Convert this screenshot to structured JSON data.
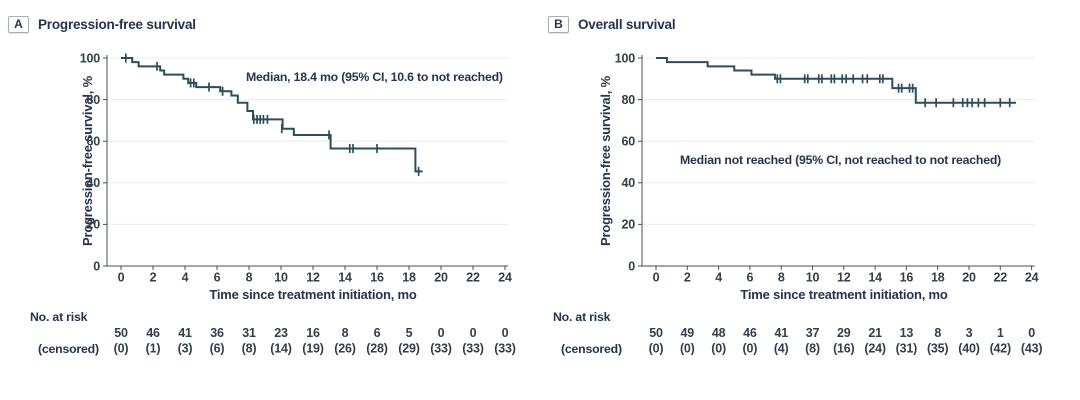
{
  "colors": {
    "curve": "#2d4d5f",
    "grid": "#e8ebec",
    "axis": "#4a4f54",
    "heading_text": "#24344c",
    "tick_text": "#333e4a"
  },
  "chart_data": [
    {
      "type": "line",
      "subtype": "kaplan-meier-step",
      "panel_label": "A",
      "panel_title": "Progression-free survival",
      "annotation": "Median, 18.4 mo (95% CI, 10.6 to not reached)",
      "xlabel": "Time since treatment initiation, mo",
      "ylabel": "Progression-free survival, %",
      "xlim": [
        0,
        24
      ],
      "ylim": [
        0,
        100
      ],
      "x_ticks": [
        0,
        2,
        4,
        6,
        8,
        10,
        12,
        14,
        16,
        18,
        20,
        22,
        24
      ],
      "y_ticks": [
        0,
        20,
        40,
        60,
        80,
        100
      ],
      "grid": "horizontal",
      "steps": [
        [
          0,
          100
        ],
        [
          0.7,
          98
        ],
        [
          1.1,
          96
        ],
        [
          2.45,
          94
        ],
        [
          2.7,
          92
        ],
        [
          3.9,
          90
        ],
        [
          4.2,
          88
        ],
        [
          4.7,
          86
        ],
        [
          6.2,
          84
        ],
        [
          6.9,
          82
        ],
        [
          7.3,
          78.5
        ],
        [
          7.9,
          74.5
        ],
        [
          8.25,
          70.5
        ],
        [
          10.1,
          66
        ],
        [
          10.8,
          63
        ],
        [
          13.1,
          56.5
        ],
        [
          18.4,
          45.5
        ]
      ],
      "end_time": 18.85,
      "censor_marks": [
        [
          0.3,
          100
        ],
        [
          2.25,
          96
        ],
        [
          4.35,
          88
        ],
        [
          4.55,
          88
        ],
        [
          5.5,
          86
        ],
        [
          6.35,
          84
        ],
        [
          8.3,
          70.5
        ],
        [
          8.5,
          70.5
        ],
        [
          8.7,
          70.5
        ],
        [
          8.9,
          70.5
        ],
        [
          9.15,
          70.5
        ],
        [
          10.05,
          66
        ],
        [
          13.0,
          63
        ],
        [
          14.3,
          56.5
        ],
        [
          14.5,
          56.5
        ],
        [
          16.0,
          56.5
        ],
        [
          18.6,
          45.5
        ]
      ],
      "risk_table": {
        "label": "No. at risk",
        "label2": "(censored)",
        "at_risk": [
          50,
          46,
          41,
          36,
          31,
          23,
          16,
          8,
          6,
          5,
          0,
          0,
          0
        ],
        "censored": [
          "(0)",
          "(1)",
          "(3)",
          "(6)",
          "(8)",
          "(14)",
          "(19)",
          "(26)",
          "(28)",
          "(29)",
          "(33)",
          "(33)",
          "(33)"
        ]
      }
    },
    {
      "type": "line",
      "subtype": "kaplan-meier-step",
      "panel_label": "B",
      "panel_title": "Overall survival",
      "annotation": "Median not reached (95% CI, not reached to not reached)",
      "xlabel": "Time since treatment initiation, mo",
      "ylabel": "Progression-free survival, %",
      "xlim": [
        0,
        24
      ],
      "ylim": [
        0,
        100
      ],
      "x_ticks": [
        0,
        2,
        4,
        6,
        8,
        10,
        12,
        14,
        16,
        18,
        20,
        22,
        24
      ],
      "y_ticks": [
        0,
        20,
        40,
        60,
        80,
        100
      ],
      "grid": "horizontal",
      "steps": [
        [
          0,
          100
        ],
        [
          0.7,
          98
        ],
        [
          3.3,
          96
        ],
        [
          5.0,
          94
        ],
        [
          6.1,
          92
        ],
        [
          7.6,
          90
        ],
        [
          15.1,
          85.5
        ],
        [
          16.6,
          78.5
        ]
      ],
      "end_time": 23.0,
      "censor_marks": [
        [
          7.75,
          90
        ],
        [
          7.95,
          90
        ],
        [
          9.5,
          90
        ],
        [
          9.7,
          90
        ],
        [
          10.4,
          90
        ],
        [
          10.6,
          90
        ],
        [
          11.2,
          90
        ],
        [
          11.4,
          90
        ],
        [
          11.9,
          90
        ],
        [
          12.15,
          90
        ],
        [
          12.6,
          90
        ],
        [
          13.2,
          90
        ],
        [
          13.5,
          90
        ],
        [
          14.3,
          90
        ],
        [
          14.5,
          90
        ],
        [
          15.5,
          85.5
        ],
        [
          15.7,
          85.5
        ],
        [
          16.2,
          85.5
        ],
        [
          16.4,
          85.5
        ],
        [
          17.2,
          78.5
        ],
        [
          17.9,
          78.5
        ],
        [
          19.0,
          78.5
        ],
        [
          19.6,
          78.5
        ],
        [
          19.9,
          78.5
        ],
        [
          20.2,
          78.5
        ],
        [
          20.6,
          78.5
        ],
        [
          21.0,
          78.5
        ],
        [
          22.0,
          78.5
        ],
        [
          22.6,
          78.5
        ]
      ],
      "risk_table": {
        "label": "No. at risk",
        "label2": "(censored)",
        "at_risk": [
          50,
          49,
          48,
          46,
          41,
          37,
          29,
          21,
          13,
          8,
          3,
          1,
          0
        ],
        "censored": [
          "(0)",
          "(0)",
          "(0)",
          "(0)",
          "(4)",
          "(8)",
          "(16)",
          "(24)",
          "(31)",
          "(35)",
          "(40)",
          "(42)",
          "(43)"
        ]
      }
    }
  ]
}
